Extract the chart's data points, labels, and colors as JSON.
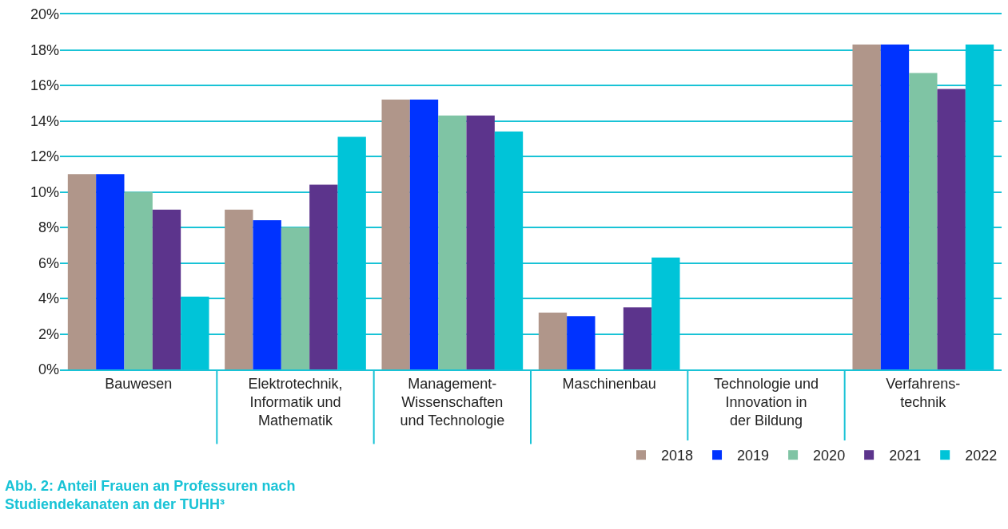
{
  "chart_data": {
    "type": "bar",
    "title": "Abb. 2: Anteil Frauen an Professuren nach\nStudiendekanaten an der TUHH³",
    "categories": [
      "Bauwesen",
      "Elektrotechnik,\nInformatik und\nMathematik",
      "Management-\nWissenschaften\nund Technologie",
      "Maschinenbau",
      "Technologie und\nInnovation in\nder Bildung",
      "Verfahrens-\ntechnik"
    ],
    "series": [
      {
        "name": "2018",
        "color": "#b0968a",
        "values": [
          11.0,
          9.0,
          15.2,
          3.2,
          null,
          18.3
        ]
      },
      {
        "name": "2019",
        "color": "#0033ff",
        "values": [
          11.0,
          8.4,
          15.2,
          3.0,
          null,
          18.3
        ]
      },
      {
        "name": "2020",
        "color": "#7fc4a4",
        "values": [
          10.0,
          8.0,
          14.3,
          null,
          null,
          16.7
        ]
      },
      {
        "name": "2021",
        "color": "#5c348c",
        "values": [
          9.0,
          10.4,
          14.3,
          3.5,
          null,
          15.8
        ]
      },
      {
        "name": "2022",
        "color": "#00c4d8",
        "values": [
          4.1,
          13.1,
          13.4,
          6.3,
          null,
          18.3
        ]
      }
    ],
    "ylim": [
      0,
      20
    ],
    "yticks": [
      {
        "value": 0,
        "label": "0%"
      },
      {
        "value": 2,
        "label": "2%"
      },
      {
        "value": 4,
        "label": "4%"
      },
      {
        "value": 6,
        "label": "6%"
      },
      {
        "value": 8,
        "label": "8%"
      },
      {
        "value": 10,
        "label": "10%"
      },
      {
        "value": 12,
        "label": "12%"
      },
      {
        "value": 14,
        "label": "14%"
      },
      {
        "value": 16,
        "label": "16%"
      },
      {
        "value": 18,
        "label": "18%"
      },
      {
        "value": 20,
        "label": "20%"
      }
    ],
    "grid": "y",
    "legend": "bottom right"
  }
}
